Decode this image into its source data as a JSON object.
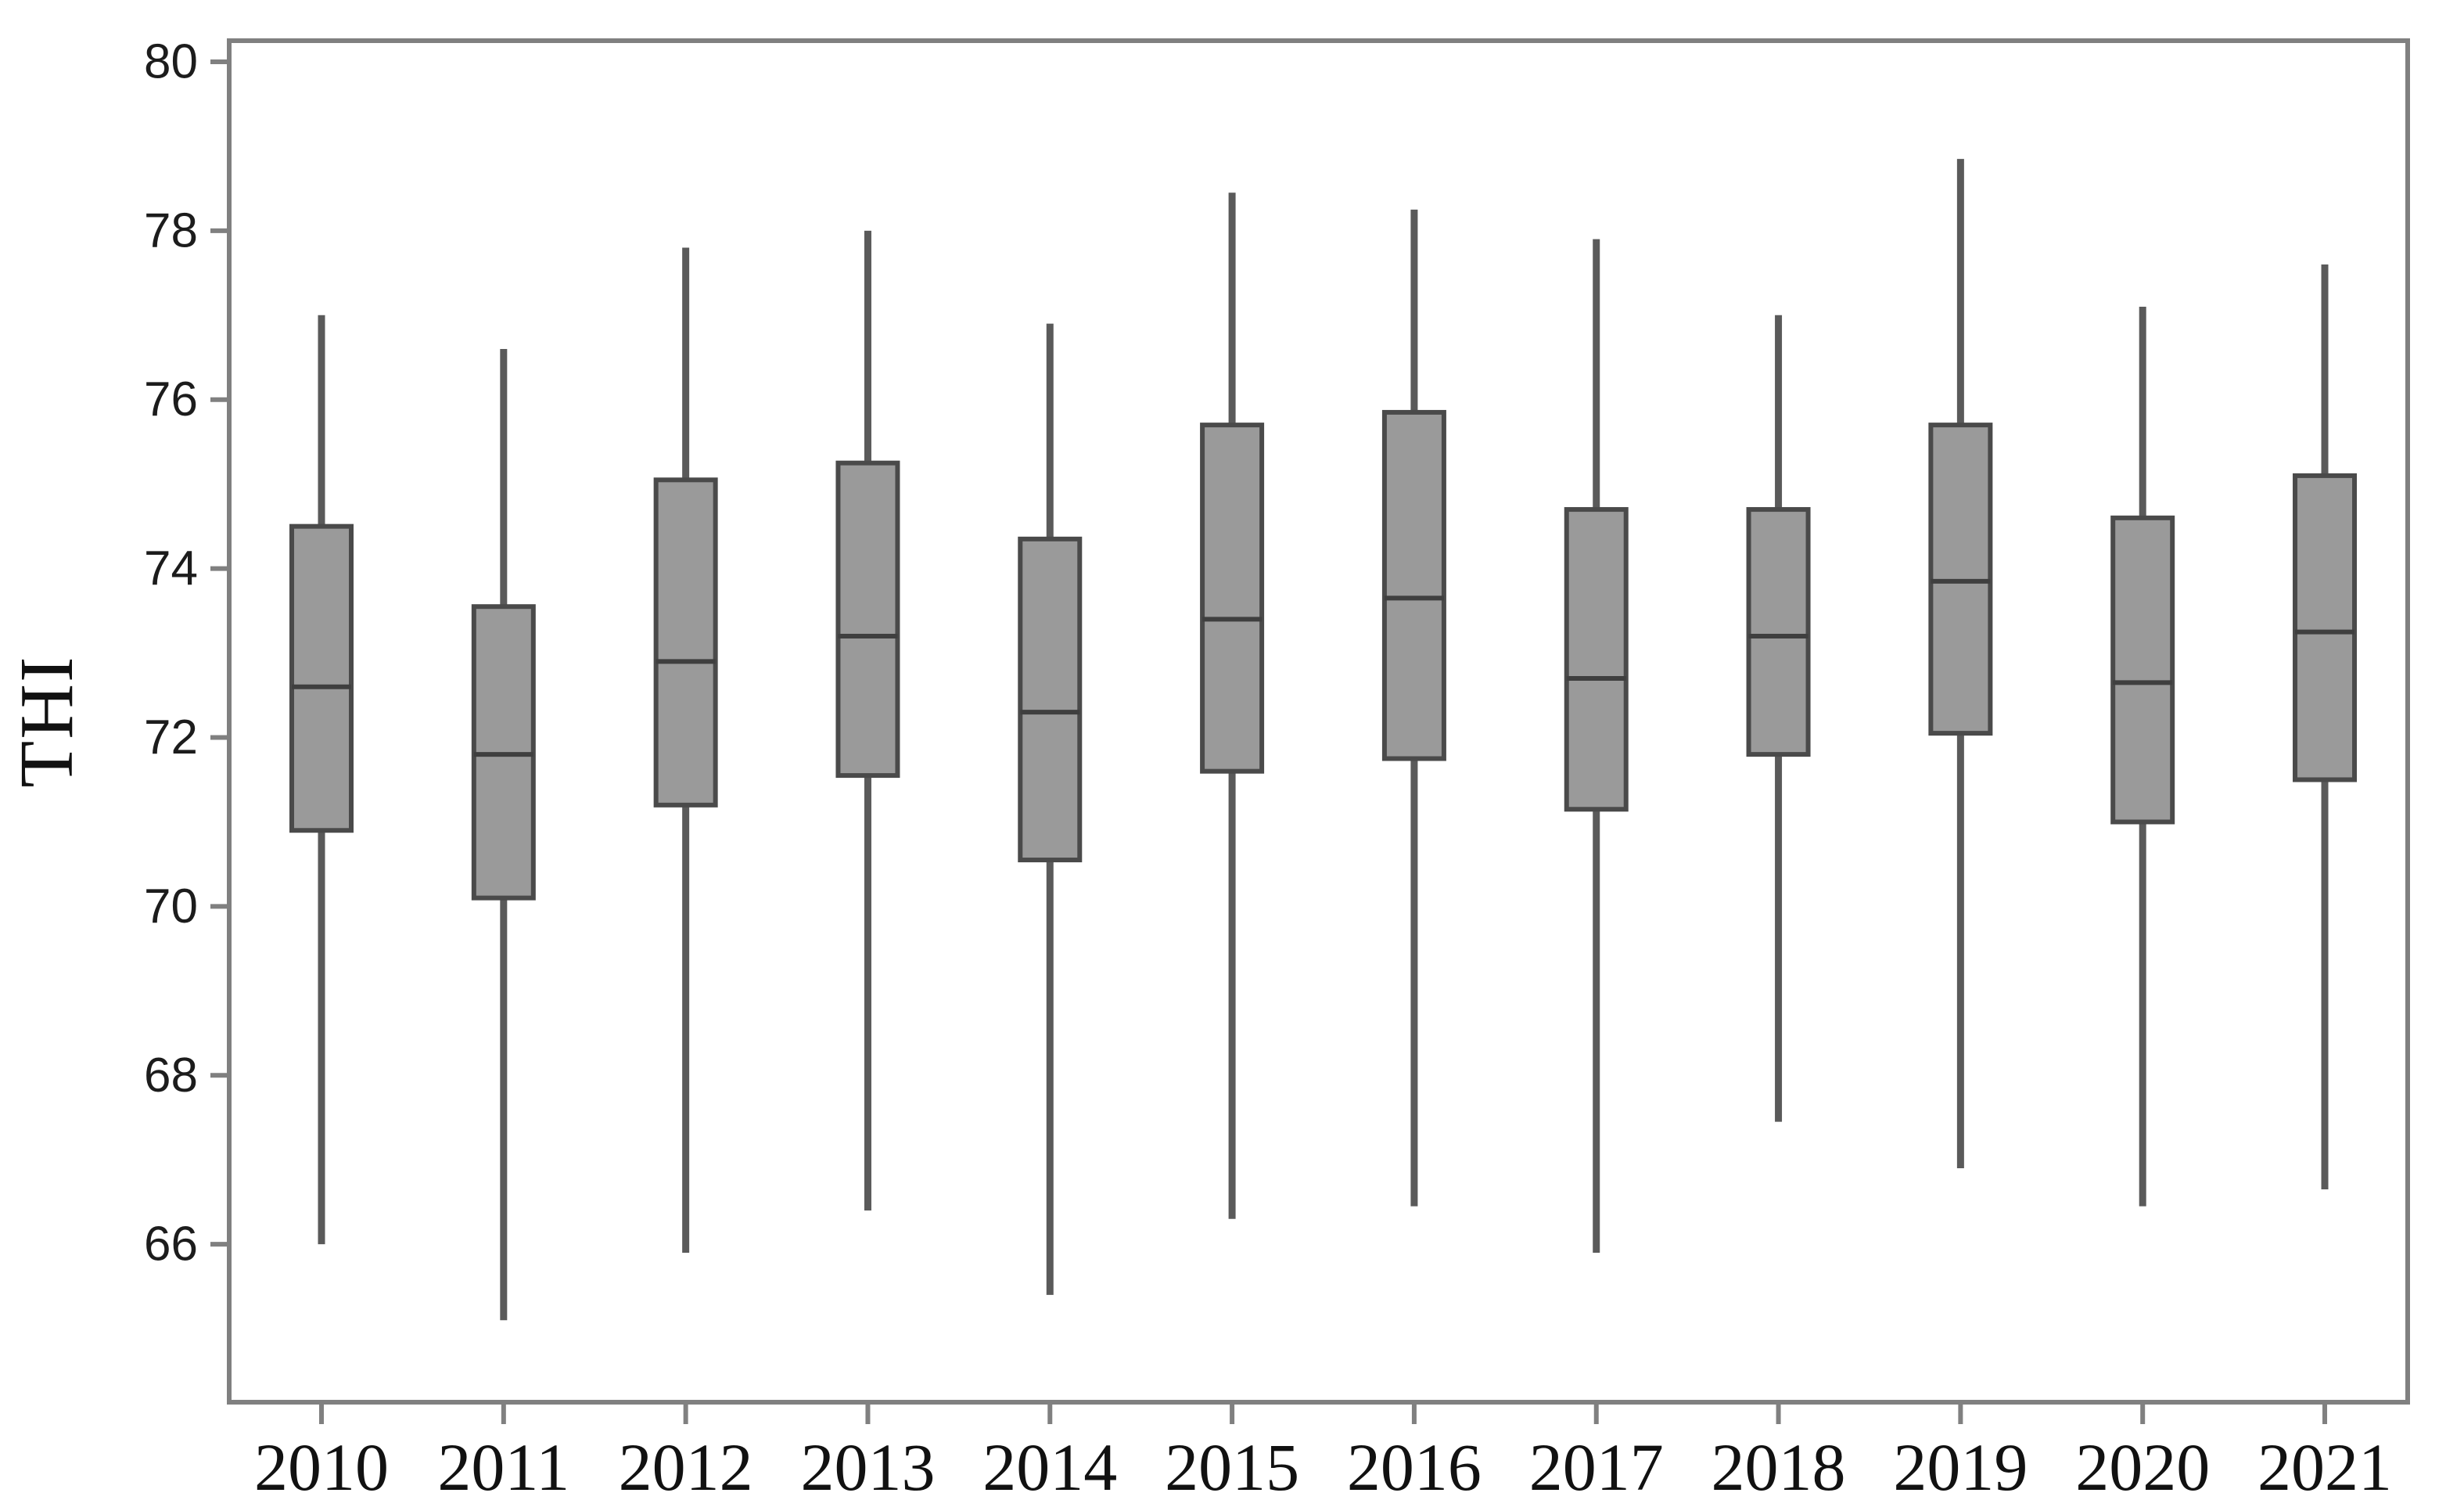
{
  "chart_data": {
    "type": "boxplot",
    "title": "",
    "xlabel": "",
    "ylabel": "THI",
    "categories": [
      "2010",
      "2011",
      "2012",
      "2013",
      "2014",
      "2015",
      "2016",
      "2017",
      "2018",
      "2019",
      "2020",
      "2021"
    ],
    "series": [
      {
        "category": "2010",
        "whisker_low": 66.0,
        "q1": 70.9,
        "median": 72.6,
        "q3": 74.5,
        "whisker_high": 77.0
      },
      {
        "category": "2011",
        "whisker_low": 65.1,
        "q1": 70.1,
        "median": 71.8,
        "q3": 73.55,
        "whisker_high": 76.6
      },
      {
        "category": "2012",
        "whisker_low": 65.9,
        "q1": 71.2,
        "median": 72.9,
        "q3": 75.05,
        "whisker_high": 77.8
      },
      {
        "category": "2013",
        "whisker_low": 66.4,
        "q1": 71.55,
        "median": 73.2,
        "q3": 75.25,
        "whisker_high": 78.0
      },
      {
        "category": "2014",
        "whisker_low": 65.4,
        "q1": 70.55,
        "median": 72.3,
        "q3": 74.35,
        "whisker_high": 76.9
      },
      {
        "category": "2015",
        "whisker_low": 66.3,
        "q1": 71.6,
        "median": 73.4,
        "q3": 75.7,
        "whisker_high": 78.45
      },
      {
        "category": "2016",
        "whisker_low": 66.45,
        "q1": 71.75,
        "median": 73.65,
        "q3": 75.85,
        "whisker_high": 78.25
      },
      {
        "category": "2017",
        "whisker_low": 65.9,
        "q1": 71.15,
        "median": 72.7,
        "q3": 74.7,
        "whisker_high": 77.9
      },
      {
        "category": "2018",
        "whisker_low": 67.45,
        "q1": 71.8,
        "median": 73.2,
        "q3": 74.7,
        "whisker_high": 77.0
      },
      {
        "category": "2019",
        "whisker_low": 66.9,
        "q1": 72.05,
        "median": 73.85,
        "q3": 75.7,
        "whisker_high": 78.85
      },
      {
        "category": "2020",
        "whisker_low": 66.45,
        "q1": 71.0,
        "median": 72.65,
        "q3": 74.6,
        "whisker_high": 77.1
      },
      {
        "category": "2021",
        "whisker_low": 66.65,
        "q1": 71.5,
        "median": 73.25,
        "q3": 75.1,
        "whisker_high": 77.6
      }
    ],
    "yticks": [
      66,
      68,
      70,
      72,
      74,
      76,
      78,
      80
    ],
    "ylim": [
      64.13,
      80.25
    ],
    "grid": false,
    "legend": false,
    "colors": {
      "box_fill": "#9a9a9a",
      "box_border": "#4a4a4a",
      "median_line": "#3f3f3f",
      "whisker_line": "#5a5a5a",
      "axis_frame": "#808080",
      "tick_mark": "#808080",
      "label_text": "#111111"
    }
  }
}
